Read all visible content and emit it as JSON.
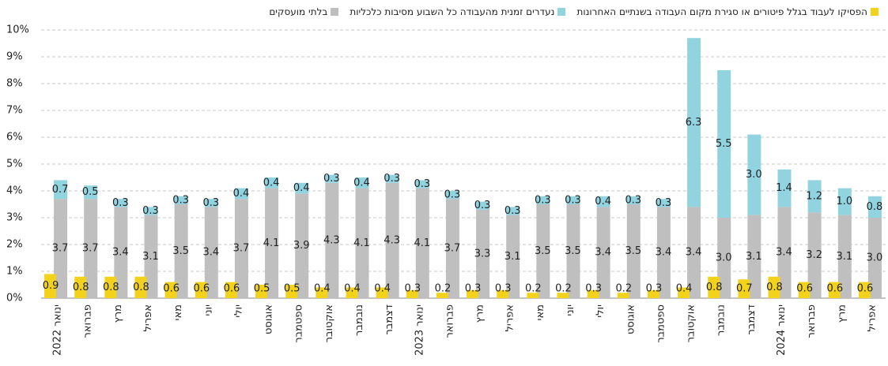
{
  "chart_data": {
    "type": "bar",
    "categories": [
      "ינואר 2022",
      "פברואר",
      "מרץ",
      "אפריל",
      "מאי",
      "יוני",
      "יולי",
      "אוגוסט",
      "ספטמבר",
      "אוקטובר",
      "נובמבר",
      "דצמבר",
      "ינואר 2023",
      "פברואר",
      "מרץ",
      "אפריל",
      "מאי",
      "יוני",
      "יולי",
      "אוגוסט",
      "ספטמבר",
      "אוקטובר",
      "נובמבר",
      "דצמבר",
      "ינואר 2024",
      "פברואר",
      "מרץ",
      "אפריל"
    ],
    "series": [
      {
        "name": "הפסיקו לעבוד בגלל פיטורים או סגירת מקום העבודה בשנתיים האחרונות",
        "color": "#f2d21b",
        "stack": 0,
        "values": [
          0.9,
          0.8,
          0.8,
          0.8,
          0.6,
          0.6,
          0.6,
          0.5,
          0.5,
          0.4,
          0.4,
          0.4,
          0.3,
          0.2,
          0.3,
          0.3,
          0.2,
          0.2,
          0.3,
          0.2,
          0.3,
          0.4,
          0.8,
          0.7,
          0.8,
          0.6,
          0.6,
          0.6
        ]
      },
      {
        "name": "נעדרים זמנית מהעבודה כל השבוע מסיבות כלכליות",
        "color": "#92d3e0",
        "stack": 1,
        "values": [
          0.7,
          0.5,
          0.3,
          0.3,
          0.3,
          0.3,
          0.4,
          0.4,
          0.4,
          0.3,
          0.4,
          0.3,
          0.3,
          0.3,
          0.3,
          0.3,
          0.3,
          0.3,
          0.4,
          0.3,
          0.3,
          6.3,
          5.5,
          3,
          1.4,
          1.2,
          1,
          0.8
        ],
        "value_labels": [
          "0.7",
          "0.5",
          "0.3",
          "0.3",
          "0.3",
          "0.3",
          "0.4",
          "0.4",
          "0.4",
          "0.3",
          "0.4",
          "0.3",
          "0.3",
          "0.3",
          "0.3",
          "0.3",
          "0.3",
          "0.3",
          "0.4",
          "0.3",
          "0.3",
          "6.3",
          "5.5",
          "3.0",
          "1.4",
          "1.2",
          "1.0",
          "0.8"
        ]
      },
      {
        "name": "בלתי מועסקים",
        "color": "#bfbfbf",
        "stack": 1,
        "values": [
          3.7,
          3.7,
          3.4,
          3.1,
          3.5,
          3.4,
          3.7,
          4.1,
          3.9,
          4.3,
          4.1,
          4.3,
          4.1,
          3.7,
          3.3,
          3.1,
          3.5,
          3.5,
          3.4,
          3.5,
          3.4,
          3.4,
          3,
          3.1,
          3.4,
          3.2,
          3.1,
          3
        ],
        "value_labels": [
          "3.7",
          "3.7",
          "3.4",
          "3.1",
          "3.5",
          "3.4",
          "3.7",
          "4.1",
          "3.9",
          "4.3",
          "4.1",
          "4.3",
          "4.1",
          "3.7",
          "3.3",
          "3.1",
          "3.5",
          "3.5",
          "3.4",
          "3.5",
          "3.4",
          "3.4",
          "3.0",
          "3.1",
          "3.4",
          "3.2",
          "3.1",
          "3.0"
        ]
      }
    ],
    "ylim": [
      0,
      10
    ],
    "yticks": [
      {
        "value": 0,
        "label": "0%"
      },
      {
        "value": 1,
        "label": "1%"
      },
      {
        "value": 2,
        "label": "2%"
      },
      {
        "value": 3,
        "label": "3%"
      },
      {
        "value": 4,
        "label": "4%"
      },
      {
        "value": 5,
        "label": "5%"
      },
      {
        "value": 6,
        "label": "6%"
      },
      {
        "value": 7,
        "label": "7%"
      },
      {
        "value": 8,
        "label": "8%"
      },
      {
        "value": 9,
        "label": "9%"
      },
      {
        "value": 10,
        "label": "10%"
      }
    ],
    "grid": true
  }
}
